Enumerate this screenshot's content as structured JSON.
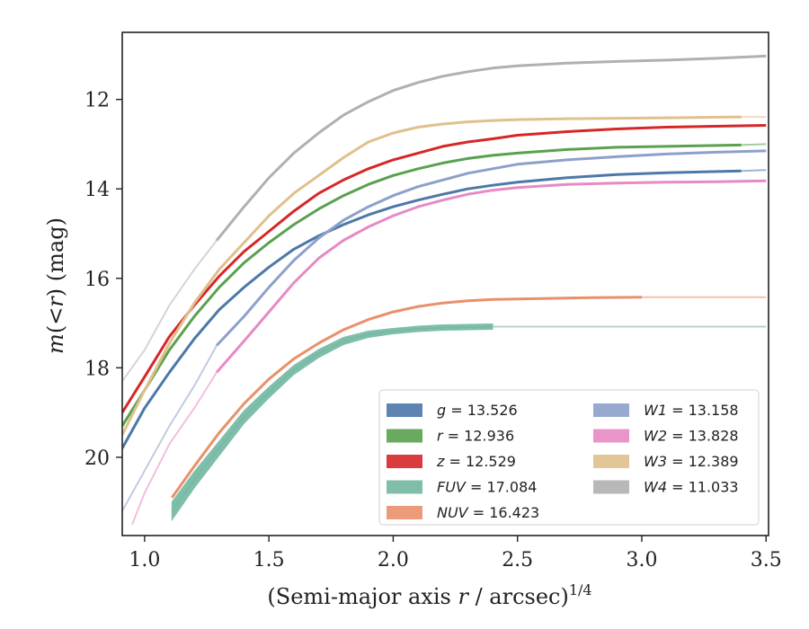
{
  "chart_data": {
    "type": "line",
    "title": "",
    "xlabel_main": "(Semi-major axis ",
    "xlabel_var": "r",
    "xlabel_tail": " / arcsec)",
    "xlabel_exp": "1/4",
    "ylabel_m": "m",
    "ylabel_paren": "(<",
    "ylabel_r": "r",
    "ylabel_tail": ") (mag)",
    "xlim": [
      0.91,
      3.51
    ],
    "ylim": [
      21.75,
      10.5
    ],
    "y_inverted": true,
    "xticks": [
      1.0,
      1.5,
      2.0,
      2.5,
      3.0,
      3.5
    ],
    "xtick_labels": [
      "1.0",
      "1.5",
      "2.0",
      "2.5",
      "3.0",
      "3.5"
    ],
    "yticks": [
      12,
      14,
      16,
      18,
      20
    ],
    "ytick_labels": [
      "12",
      "14",
      "16",
      "18",
      "20"
    ],
    "grid": false,
    "legend_position": "lower-right",
    "legend_columns": 2,
    "series": [
      {
        "name": "g",
        "magnitude": "13.526",
        "color": "#4c78a8",
        "x": [
          0.91,
          1.0,
          1.1,
          1.2,
          1.3,
          1.4,
          1.5,
          1.6,
          1.7,
          1.8,
          1.9,
          2.0,
          2.1,
          2.2,
          2.3,
          2.4,
          2.5,
          2.7,
          2.9,
          3.1,
          3.4,
          3.5
        ],
        "y": [
          19.8,
          18.9,
          18.1,
          17.35,
          16.7,
          16.2,
          15.75,
          15.35,
          15.05,
          14.8,
          14.58,
          14.4,
          14.25,
          14.12,
          14.0,
          13.92,
          13.85,
          13.75,
          13.68,
          13.64,
          13.6,
          13.58
        ],
        "faint_after": 3.4,
        "band": false
      },
      {
        "name": "r",
        "magnitude": "12.936",
        "color": "#59a14f",
        "x": [
          0.91,
          1.0,
          1.1,
          1.2,
          1.3,
          1.4,
          1.5,
          1.6,
          1.7,
          1.8,
          1.9,
          2.0,
          2.1,
          2.2,
          2.3,
          2.4,
          2.5,
          2.7,
          2.9,
          3.1,
          3.4,
          3.5
        ],
        "y": [
          19.3,
          18.5,
          17.6,
          16.85,
          16.2,
          15.65,
          15.2,
          14.8,
          14.45,
          14.15,
          13.9,
          13.7,
          13.55,
          13.42,
          13.32,
          13.25,
          13.2,
          13.12,
          13.07,
          13.05,
          13.02,
          13.0
        ],
        "faint_after": 3.4,
        "band": false
      },
      {
        "name": "z",
        "magnitude": "12.529",
        "color": "#d62728",
        "x": [
          0.91,
          1.0,
          1.1,
          1.2,
          1.3,
          1.4,
          1.5,
          1.6,
          1.7,
          1.8,
          1.9,
          2.0,
          2.1,
          2.2,
          2.3,
          2.4,
          2.5,
          2.7,
          2.9,
          3.1,
          3.3,
          3.5
        ],
        "y": [
          19.0,
          18.2,
          17.3,
          16.6,
          15.95,
          15.4,
          14.95,
          14.5,
          14.1,
          13.8,
          13.55,
          13.35,
          13.2,
          13.05,
          12.95,
          12.88,
          12.8,
          12.72,
          12.66,
          12.62,
          12.6,
          12.58
        ],
        "faint_after": 3.6,
        "band": false
      },
      {
        "name": "FUV",
        "magnitude": "17.084",
        "color": "#72b7a1",
        "x": [
          1.11,
          1.2,
          1.3,
          1.4,
          1.5,
          1.6,
          1.7,
          1.8,
          1.9,
          2.0,
          2.1,
          2.2,
          2.3,
          2.4,
          2.6,
          2.8,
          3.0,
          3.2,
          3.5
        ],
        "y": [
          21.2,
          20.5,
          19.8,
          19.1,
          18.55,
          18.05,
          17.68,
          17.4,
          17.25,
          17.18,
          17.13,
          17.1,
          17.09,
          17.08,
          17.08,
          17.08,
          17.08,
          17.08,
          17.08
        ],
        "faint_after": 2.4,
        "faint_before": 1.11,
        "band": true,
        "band_width": [
          10,
          9,
          8,
          7,
          6,
          5,
          4.5,
          4,
          3.5,
          3,
          3,
          3,
          3,
          3
        ]
      },
      {
        "name": "NUV",
        "magnitude": "16.423",
        "color": "#e9906a",
        "x": [
          1.11,
          1.2,
          1.3,
          1.4,
          1.5,
          1.6,
          1.7,
          1.8,
          1.9,
          2.0,
          2.1,
          2.2,
          2.3,
          2.4,
          2.6,
          2.8,
          3.0,
          3.2,
          3.5
        ],
        "y": [
          20.9,
          20.2,
          19.45,
          18.8,
          18.25,
          17.8,
          17.45,
          17.15,
          16.92,
          16.75,
          16.63,
          16.55,
          16.5,
          16.47,
          16.45,
          16.43,
          16.42,
          16.42,
          16.42
        ],
        "faint_after": 3.07,
        "faint_before": 1.11,
        "band": false
      },
      {
        "name": "W1",
        "magnitude": "13.158",
        "color": "#8da0cb",
        "x": [
          0.91,
          1.0,
          1.1,
          1.2,
          1.29,
          1.4,
          1.5,
          1.6,
          1.7,
          1.8,
          1.9,
          2.0,
          2.1,
          2.2,
          2.3,
          2.4,
          2.5,
          2.7,
          2.9,
          3.1,
          3.3,
          3.5
        ],
        "y": [
          21.2,
          20.3,
          19.3,
          18.4,
          17.5,
          16.85,
          16.2,
          15.6,
          15.1,
          14.7,
          14.4,
          14.15,
          13.95,
          13.8,
          13.65,
          13.55,
          13.45,
          13.35,
          13.28,
          13.22,
          13.18,
          13.15
        ],
        "faint_before": 1.29,
        "faint_after": 3.6,
        "band": false
      },
      {
        "name": "W2",
        "magnitude": "13.828",
        "color": "#e78ac3",
        "x": [
          0.95,
          1.0,
          1.1,
          1.2,
          1.29,
          1.4,
          1.5,
          1.6,
          1.7,
          1.8,
          1.9,
          2.0,
          2.1,
          2.2,
          2.3,
          2.4,
          2.5,
          2.7,
          2.9,
          3.1,
          3.3,
          3.5
        ],
        "y": [
          21.5,
          20.8,
          19.7,
          18.9,
          18.1,
          17.4,
          16.75,
          16.1,
          15.55,
          15.15,
          14.85,
          14.6,
          14.4,
          14.25,
          14.12,
          14.03,
          13.97,
          13.9,
          13.87,
          13.85,
          13.84,
          13.82
        ],
        "faint_before": 1.29,
        "faint_after": 3.6,
        "band": false
      },
      {
        "name": "W3",
        "magnitude": "12.389",
        "color": "#e0c08c",
        "x": [
          0.91,
          1.0,
          1.1,
          1.2,
          1.3,
          1.4,
          1.5,
          1.6,
          1.7,
          1.8,
          1.9,
          2.0,
          2.1,
          2.2,
          2.3,
          2.4,
          2.5,
          2.7,
          2.9,
          3.1,
          3.4,
          3.5
        ],
        "y": [
          19.5,
          18.5,
          17.45,
          16.55,
          15.8,
          15.2,
          14.6,
          14.1,
          13.7,
          13.3,
          12.95,
          12.75,
          12.62,
          12.55,
          12.5,
          12.47,
          12.45,
          12.43,
          12.42,
          12.41,
          12.39,
          12.39
        ],
        "faint_after": 3.4,
        "band": false
      },
      {
        "name": "W4",
        "magnitude": "11.033",
        "color": "#b0b0b0",
        "x": [
          0.91,
          1.0,
          1.1,
          1.2,
          1.29,
          1.4,
          1.5,
          1.6,
          1.7,
          1.8,
          1.9,
          2.0,
          2.1,
          2.2,
          2.3,
          2.4,
          2.5,
          2.7,
          2.9,
          3.1,
          3.3,
          3.5
        ],
        "y": [
          18.3,
          17.6,
          16.6,
          15.8,
          15.15,
          14.4,
          13.75,
          13.2,
          12.75,
          12.35,
          12.05,
          11.8,
          11.62,
          11.48,
          11.38,
          11.3,
          11.25,
          11.19,
          11.15,
          11.12,
          11.08,
          11.03
        ],
        "faint_before": 1.29,
        "faint_after": 3.6,
        "band": false
      }
    ]
  }
}
